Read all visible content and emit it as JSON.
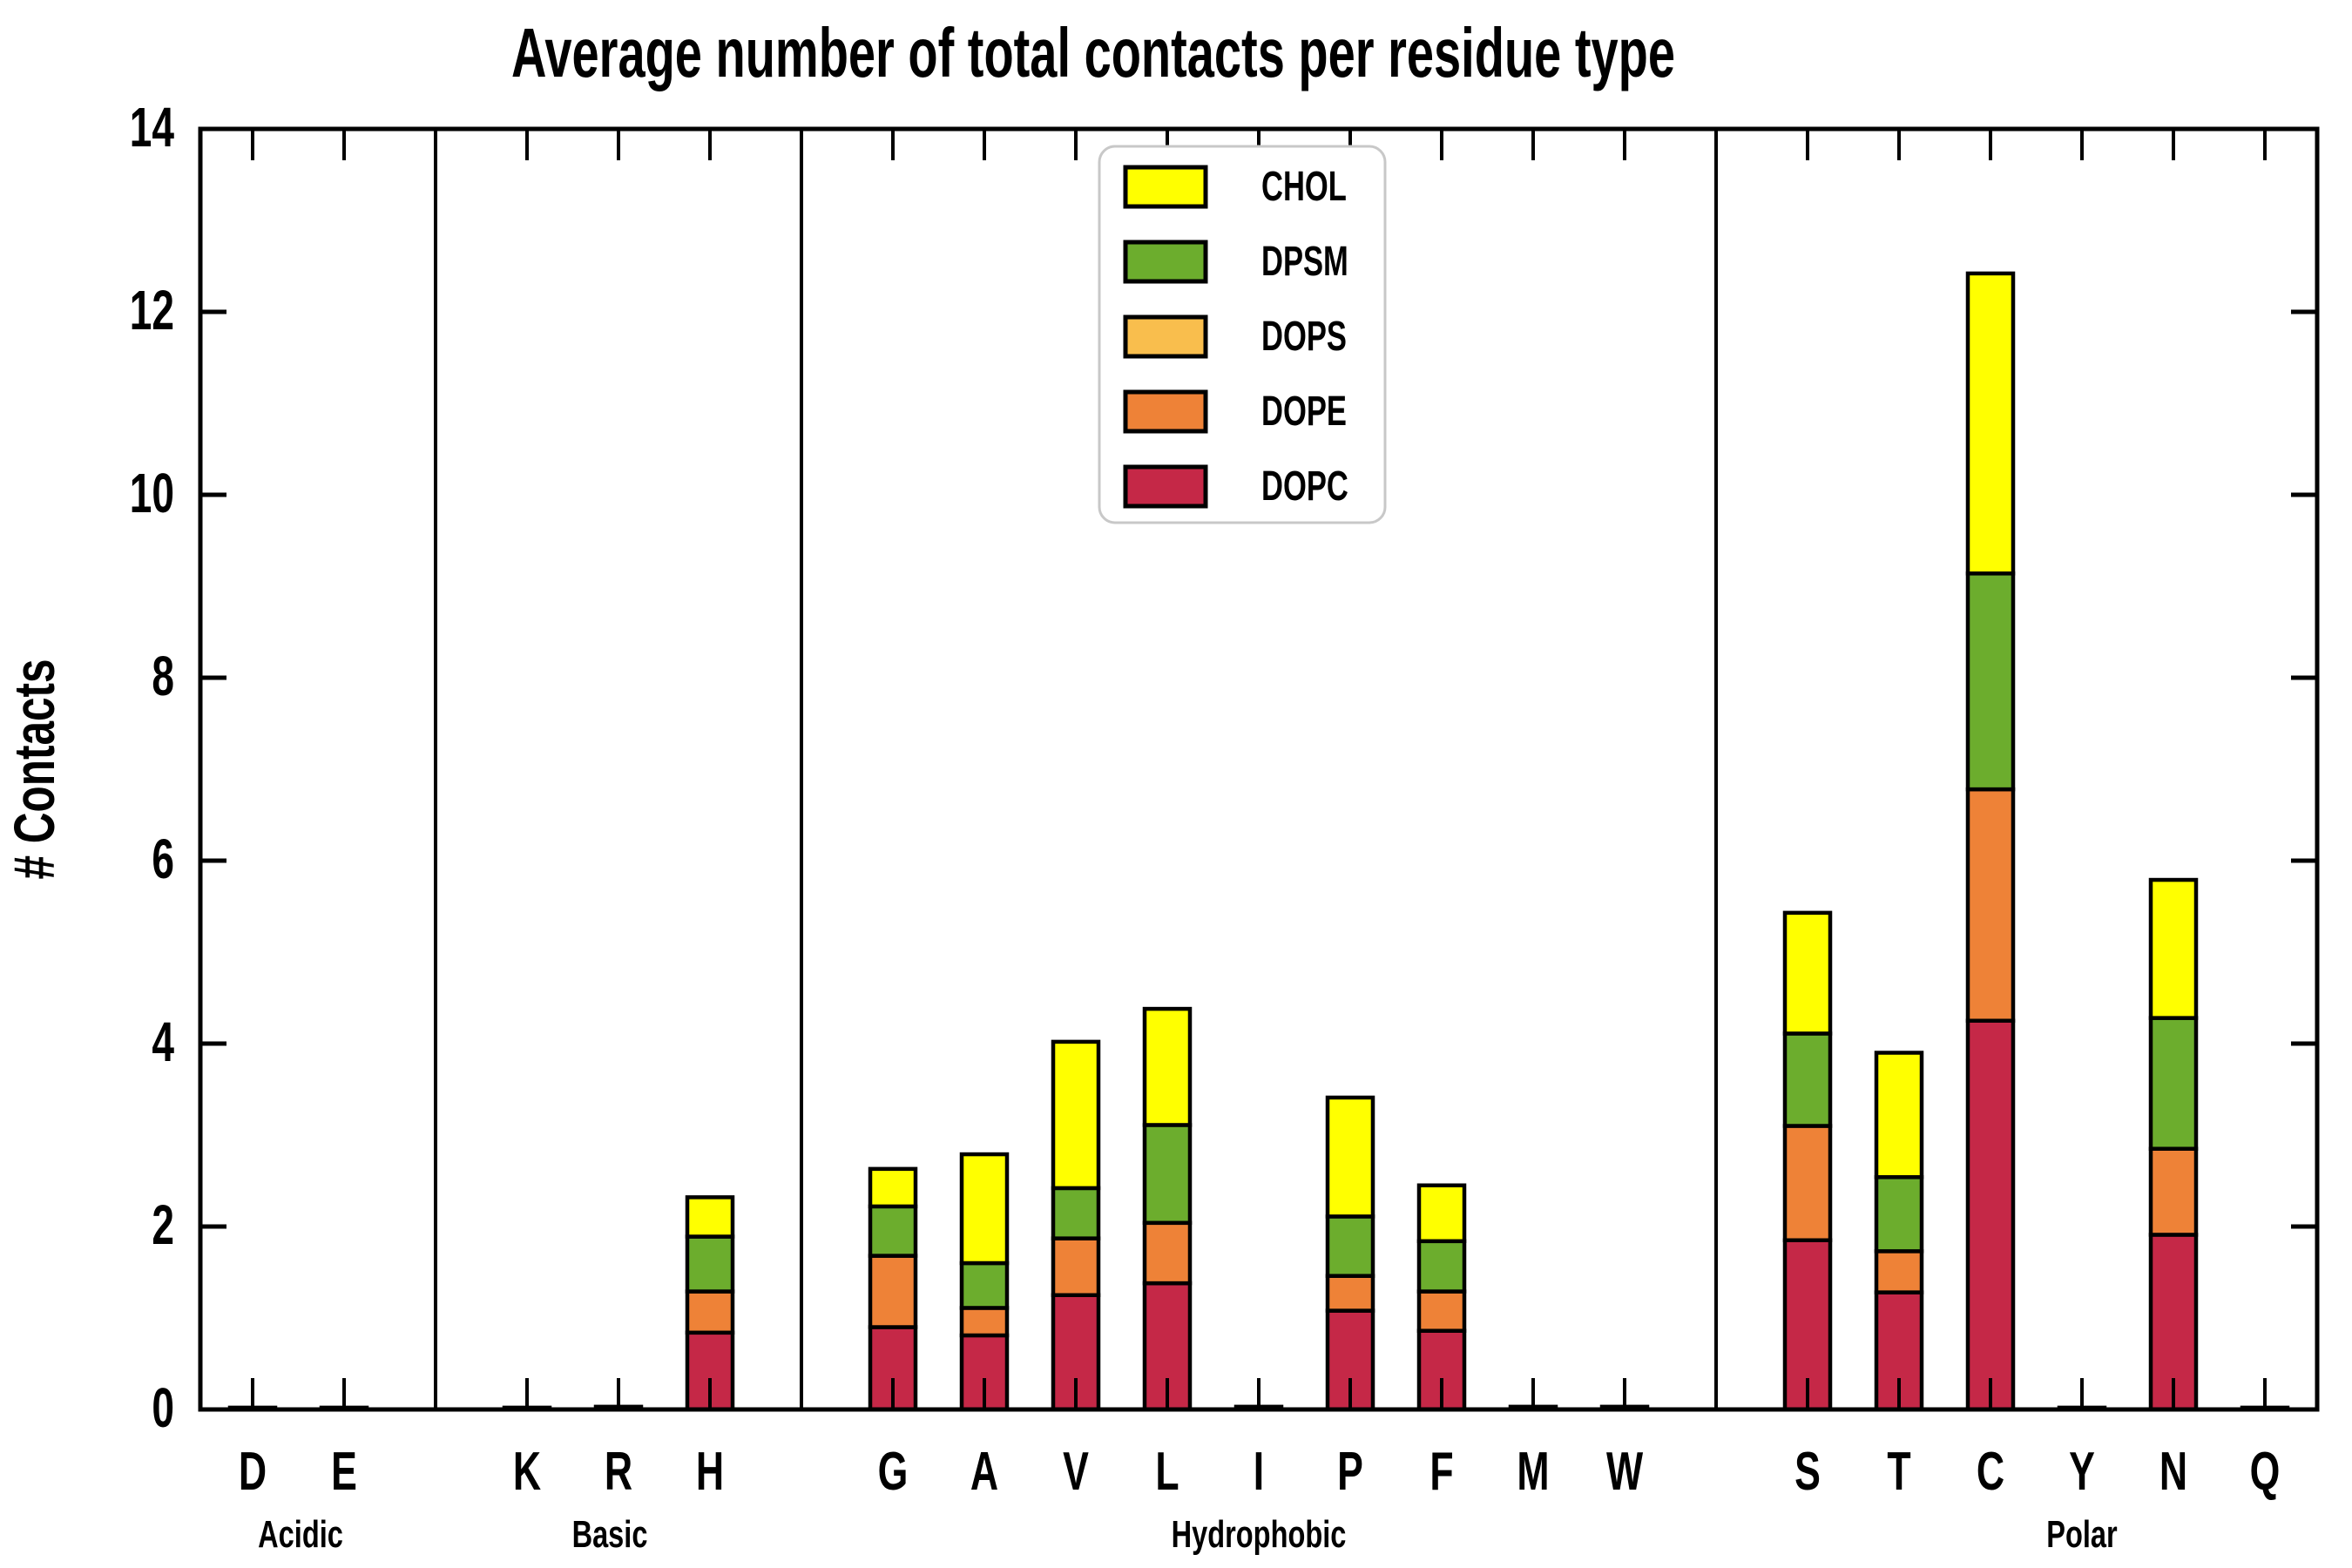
{
  "title": "Average number of total contacts per residue type",
  "ylabel": "# Contacts",
  "chart_data": {
    "type": "bar",
    "stacked": true,
    "ylim": [
      0,
      14
    ],
    "yticks": [
      0,
      2,
      4,
      6,
      8,
      10,
      12,
      14
    ],
    "grid": false,
    "legend_position": "upper center-left inside plot",
    "categories": [
      "D",
      "E",
      "K",
      "R",
      "H",
      "G",
      "A",
      "V",
      "L",
      "I",
      "P",
      "F",
      "M",
      "W",
      "S",
      "T",
      "C",
      "Y",
      "N",
      "Q"
    ],
    "groups": [
      {
        "label": "Acidic",
        "residues": [
          "D",
          "E"
        ]
      },
      {
        "label": "Basic",
        "residues": [
          "K",
          "R",
          "H"
        ]
      },
      {
        "label": "Hydrophobic",
        "residues": [
          "G",
          "A",
          "V",
          "L",
          "I",
          "P",
          "F",
          "M",
          "W"
        ]
      },
      {
        "label": "Polar",
        "residues": [
          "S",
          "T",
          "C",
          "Y",
          "N",
          "Q"
        ]
      }
    ],
    "series": [
      {
        "name": "DOPC",
        "color": "#C52847",
        "values": [
          0.02,
          0.02,
          0.02,
          0.03,
          0.84,
          0.9,
          0.81,
          1.25,
          1.38,
          0.03,
          1.08,
          0.86,
          0.03,
          0.03,
          1.85,
          1.28,
          4.25,
          0.02,
          1.91,
          0.02
        ]
      },
      {
        "name": "DOPE",
        "color": "#EE8237",
        "values": [
          0,
          0,
          0,
          0,
          0.45,
          0.78,
          0.3,
          0.62,
          0.66,
          0,
          0.38,
          0.43,
          0,
          0,
          1.25,
          0.45,
          2.53,
          0,
          0.94,
          0
        ]
      },
      {
        "name": "DOPS",
        "color": "#F9BE4D",
        "values": [
          0,
          0,
          0,
          0,
          0,
          0,
          0,
          0,
          0,
          0,
          0,
          0,
          0,
          0,
          0,
          0,
          0,
          0,
          0,
          0
        ]
      },
      {
        "name": "DPSM",
        "color": "#6CAD2D",
        "values": [
          0,
          0,
          0,
          0,
          0.6,
          0.54,
          0.49,
          0.55,
          1.07,
          0,
          0.65,
          0.55,
          0,
          0,
          1.01,
          0.81,
          2.36,
          0,
          1.43,
          0
        ]
      },
      {
        "name": "CHOL",
        "color": "#FFFF00",
        "values": [
          0,
          0,
          0,
          0,
          0.43,
          0.41,
          1.19,
          1.6,
          1.27,
          0,
          1.3,
          0.61,
          0,
          0,
          1.32,
          1.36,
          3.28,
          0,
          1.51,
          0
        ]
      }
    ],
    "legend_entries": [
      {
        "label": "CHOL",
        "color": "#FFFF00"
      },
      {
        "label": "DPSM",
        "color": "#6CAD2D"
      },
      {
        "label": "DOPS",
        "color": "#F9BE4D"
      },
      {
        "label": "DOPE",
        "color": "#EE8237"
      },
      {
        "label": "DOPC",
        "color": "#C52847"
      }
    ],
    "bar_totals": {
      "D": 0.02,
      "E": 0.02,
      "K": 0.02,
      "R": 0.03,
      "H": 2.32,
      "G": 2.63,
      "A": 2.79,
      "V": 4.02,
      "L": 4.38,
      "I": 0.03,
      "P": 3.41,
      "F": 2.45,
      "M": 0.03,
      "W": 0.03,
      "S": 5.43,
      "T": 3.9,
      "C": 12.42,
      "Y": 0.02,
      "N": 5.79,
      "Q": 0.02
    },
    "axis_color": "#000000",
    "background_color": "#FFFFFF",
    "legend_border_color": "#C8C8C8"
  }
}
